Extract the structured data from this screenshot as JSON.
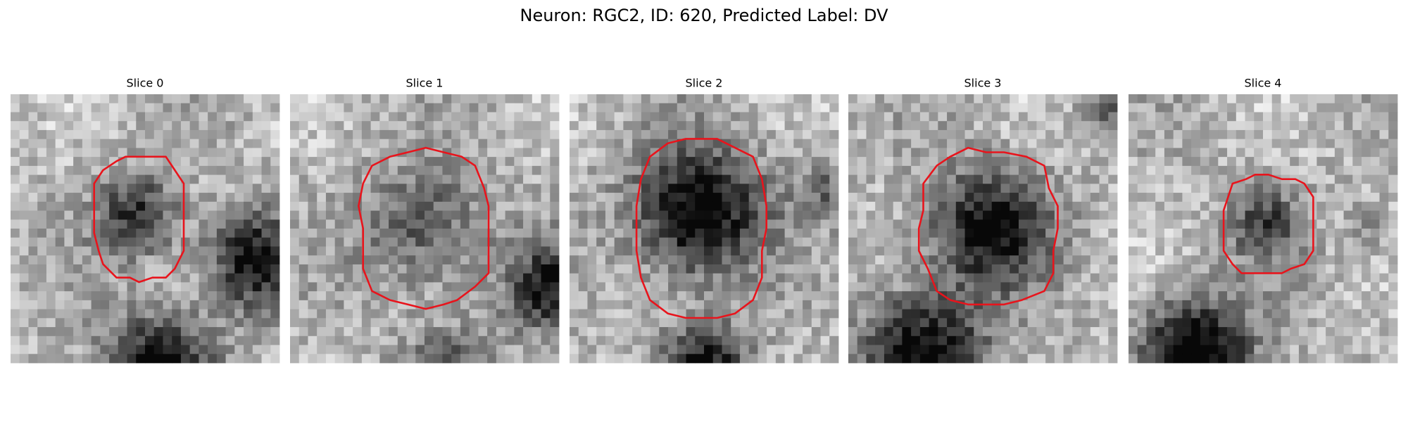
{
  "header": {
    "title": "Neuron: RGC2, ID: 620, Predicted Label: DV"
  },
  "panels": [
    {
      "title": "Slice 0"
    },
    {
      "title": "Slice 1"
    },
    {
      "title": "Slice 2"
    },
    {
      "title": "Slice 3"
    },
    {
      "title": "Slice 4"
    }
  ]
}
